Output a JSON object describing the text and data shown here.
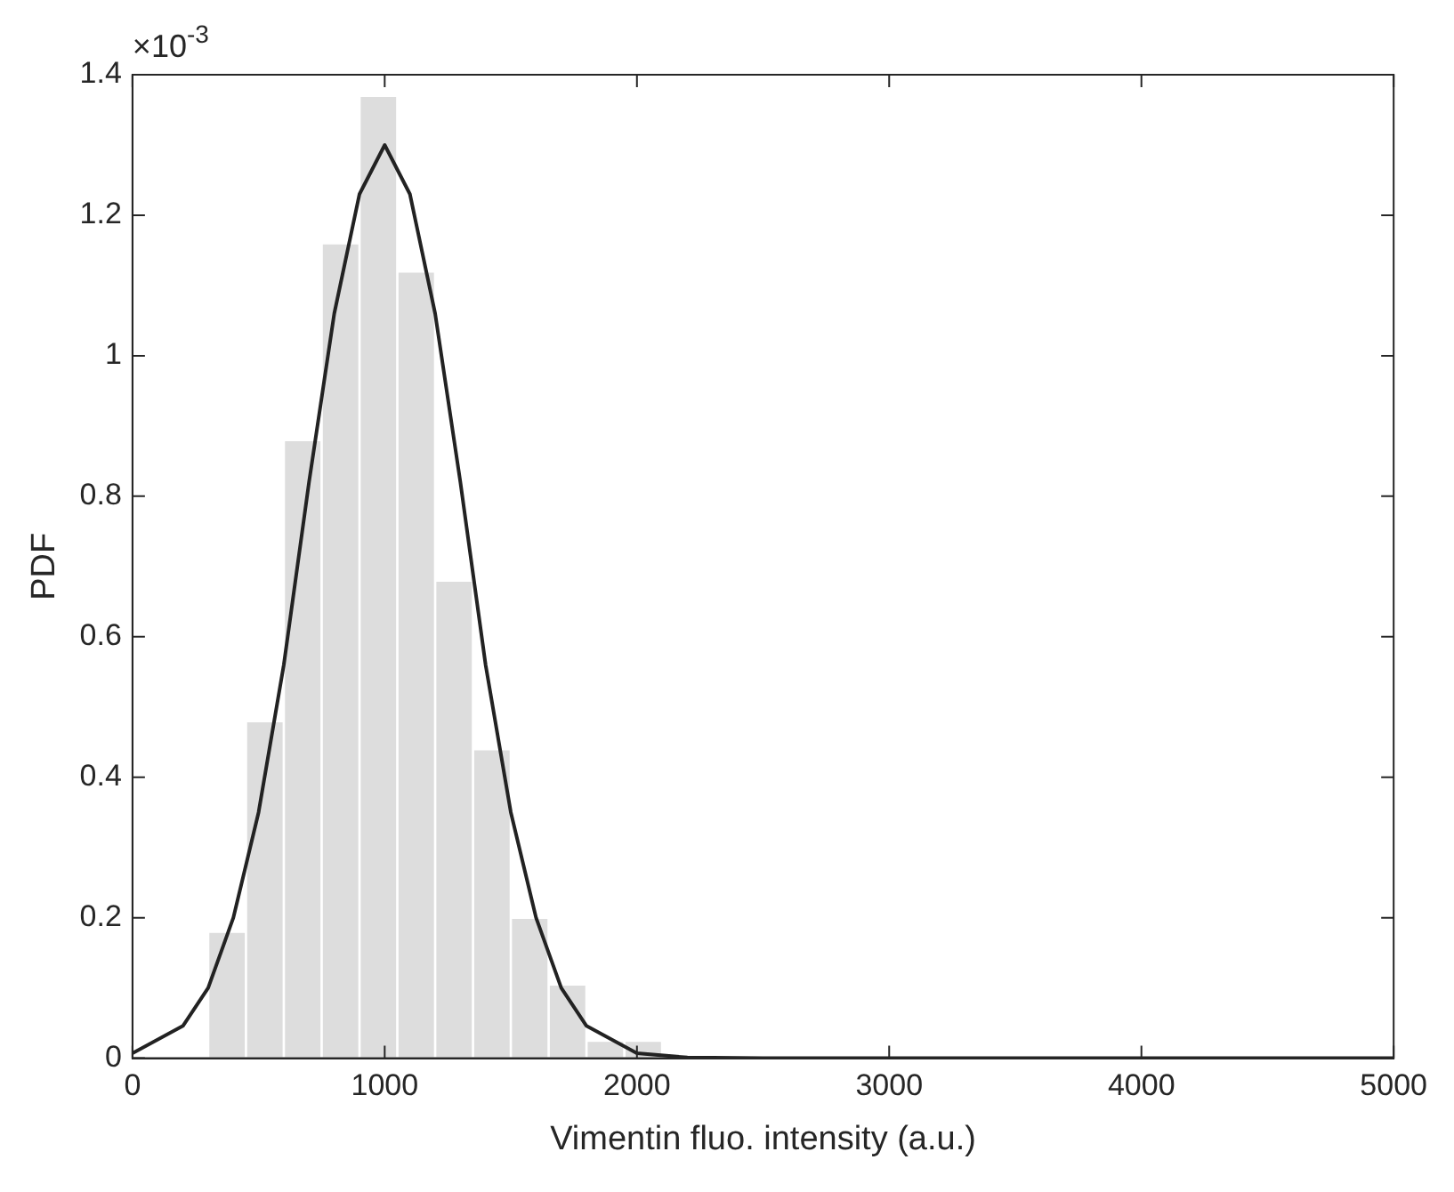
{
  "chart_data": {
    "type": "histogram",
    "xlabel": "Vimentin fluo. intensity (a.u.)",
    "ylabel": "PDF",
    "annotations": [
      "×10$^{-3}$"
    ],
    "bins": [
      300,
      450,
      600,
      750,
      900,
      1050,
      1200,
      1350,
      1500,
      1650,
      1800,
      1950,
      2100
    ],
    "values": [
      0.18,
      0.48,
      0.88,
      1.16,
      1.37,
      1.12,
      0.68,
      0.44,
      0.2,
      0.105,
      0.025,
      0.025
    ],
    "color": "#dddddd",
    "series": [
      {
        "type": "line",
        "color": "#222222",
        "x": [
          0,
          200,
          300,
          400,
          500,
          600,
          700,
          800,
          900,
          1000,
          1100,
          1200,
          1300,
          1400,
          1500,
          1600,
          1700,
          1800,
          2000,
          2200,
          2500,
          3000,
          4000,
          5000
        ],
        "values": [
          0.007,
          0.046,
          0.1,
          0.2,
          0.35,
          0.56,
          0.82,
          1.06,
          1.23,
          1.3,
          1.23,
          1.06,
          0.82,
          0.56,
          0.35,
          0.2,
          0.1,
          0.046,
          0.007,
          0.001,
          0,
          0,
          0,
          0
        ]
      }
    ],
    "xlim": [
      0,
      5000
    ],
    "xticks": [
      0,
      1000,
      2000,
      3000,
      4000,
      5000
    ],
    "ylim": [
      0,
      1.4
    ],
    "yticks": [
      0,
      0.2,
      0.4,
      0.6,
      0.8,
      1,
      1.2,
      1.4
    ],
    "grid": false,
    "legend": false
  }
}
